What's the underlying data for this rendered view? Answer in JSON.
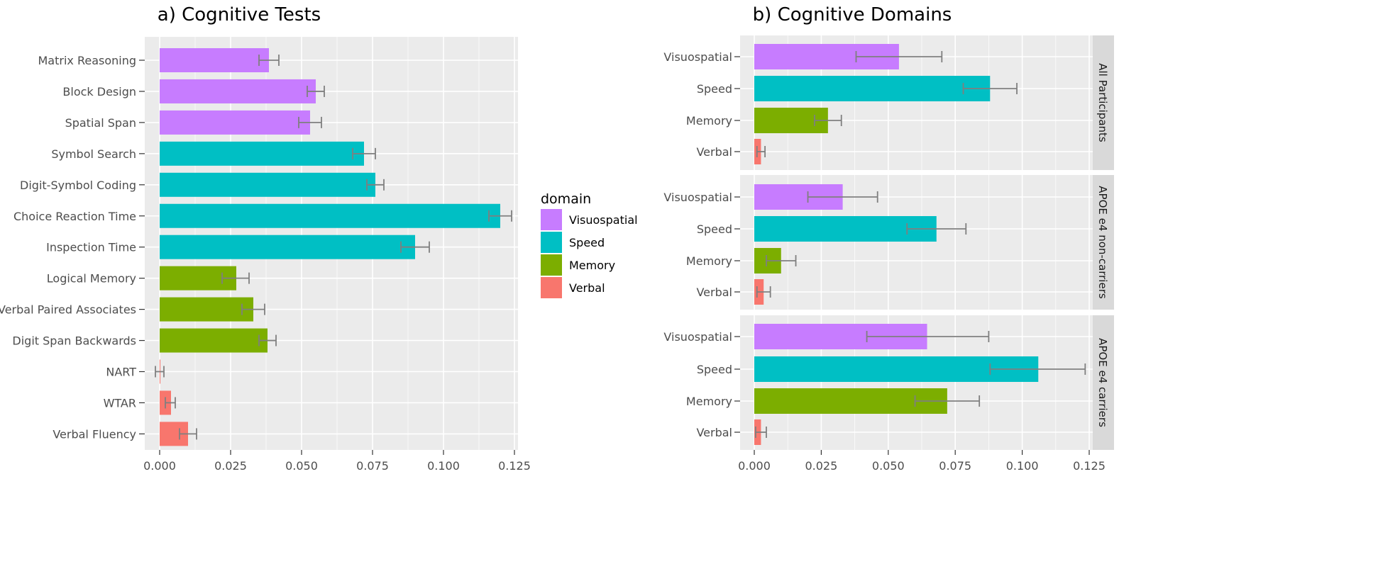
{
  "chart_data": [
    {
      "type": "bar",
      "orientation": "horizontal",
      "title": "a) Cognitive Tests",
      "xlabel": "",
      "ylabel": "",
      "xlim": [
        -0.005,
        0.126
      ],
      "xticks": [
        "0.000",
        "0.025",
        "0.050",
        "0.075",
        "0.100",
        "0.125"
      ],
      "grid": true,
      "categories": [
        "Matrix Reasoning",
        "Block Design",
        "Spatial Span",
        "Symbol Search",
        "Digit-Symbol Coding",
        "Choice Reaction Time",
        "Inspection Time",
        "Logical Memory",
        "Verbal Paired Associates",
        "Digit Span Backwards",
        "NART",
        "WTAR",
        "Verbal Fluency"
      ],
      "domains": [
        "Visuospatial",
        "Visuospatial",
        "Visuospatial",
        "Speed",
        "Speed",
        "Speed",
        "Speed",
        "Memory",
        "Memory",
        "Memory",
        "Verbal",
        "Verbal",
        "Verbal"
      ],
      "values": [
        0.0385,
        0.055,
        0.053,
        0.072,
        0.076,
        0.12,
        0.09,
        0.027,
        0.033,
        0.038,
        0.0002,
        0.004,
        0.01
      ],
      "error_low": [
        0.035,
        0.052,
        0.049,
        0.068,
        0.073,
        0.116,
        0.085,
        0.022,
        0.029,
        0.035,
        -0.0015,
        0.002,
        0.007
      ],
      "error_high": [
        0.042,
        0.058,
        0.057,
        0.076,
        0.079,
        0.124,
        0.095,
        0.0315,
        0.037,
        0.041,
        0.0015,
        0.0055,
        0.013
      ]
    },
    {
      "type": "bar",
      "orientation": "horizontal",
      "title": "b) Cognitive Domains",
      "xlabel": "",
      "ylabel": "",
      "xlim": [
        -0.005,
        0.126
      ],
      "xticks": [
        "0.000",
        "0.025",
        "0.050",
        "0.075",
        "0.100",
        "0.125"
      ],
      "grid": true,
      "facets": [
        {
          "label": "All Participants",
          "categories": [
            "Visuospatial",
            "Speed",
            "Memory",
            "Verbal"
          ],
          "values": [
            0.054,
            0.088,
            0.0275,
            0.0025
          ],
          "error_low": [
            0.038,
            0.078,
            0.0225,
            0.001
          ],
          "error_high": [
            0.07,
            0.098,
            0.0325,
            0.004
          ]
        },
        {
          "label": "APOE e4 non-carriers",
          "categories": [
            "Visuospatial",
            "Speed",
            "Memory",
            "Verbal"
          ],
          "values": [
            0.033,
            0.068,
            0.01,
            0.0035
          ],
          "error_low": [
            0.02,
            0.057,
            0.0045,
            0.001
          ],
          "error_high": [
            0.046,
            0.079,
            0.0155,
            0.006
          ]
        },
        {
          "label": "APOE e4 carriers",
          "categories": [
            "Visuospatial",
            "Speed",
            "Memory",
            "Verbal"
          ],
          "values": [
            0.0645,
            0.106,
            0.072,
            0.0025
          ],
          "error_low": [
            0.042,
            0.088,
            0.06,
            0.0005
          ],
          "error_high": [
            0.0875,
            0.1235,
            0.084,
            0.0045
          ]
        }
      ]
    }
  ],
  "legend": {
    "title": "domain",
    "placement": "center-right of panel a",
    "items": [
      {
        "label": "Visuospatial",
        "color": "#C77CFF"
      },
      {
        "label": "Speed",
        "color": "#00BFC4"
      },
      {
        "label": "Memory",
        "color": "#7CAE00"
      },
      {
        "label": "Verbal",
        "color": "#F8766D"
      }
    ]
  },
  "colors": {
    "panel_background": "#EBEBEB",
    "gridline": "#FFFFFF",
    "strip_background": "#D9D9D9",
    "errorbar": "#7F7F7F",
    "tick_text": "#4D4D4D"
  }
}
